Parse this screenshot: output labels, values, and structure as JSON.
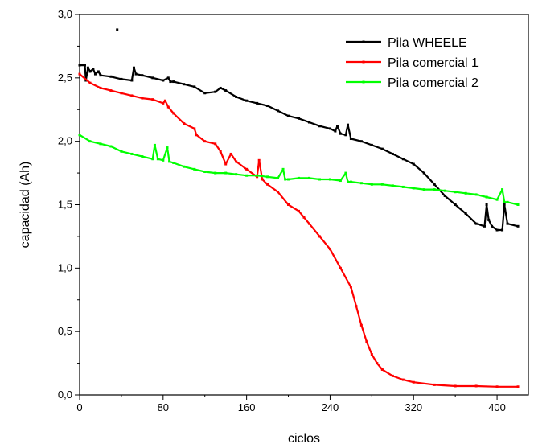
{
  "chart_data": {
    "type": "line",
    "title": "",
    "xlabel": "ciclos",
    "ylabel": "capacidad (Ah)",
    "xlim": [
      0,
      430
    ],
    "ylim": [
      0,
      3
    ],
    "x_ticks": [
      0,
      80,
      160,
      240,
      320,
      400
    ],
    "x_tick_labels": [
      "0",
      "80",
      "160",
      "240",
      "320",
      "400"
    ],
    "y_ticks": [
      0,
      0.5,
      1,
      1.5,
      2,
      2.5,
      3
    ],
    "y_tick_labels": [
      "0,0",
      "0,5",
      "1,0",
      "1,5",
      "2,0",
      "2,5",
      "3,0"
    ],
    "grid": false,
    "legend_position": "top-right",
    "series": [
      {
        "name": "Pila WHEELE",
        "color": "#000000",
        "x": [
          0,
          5,
          6,
          8,
          10,
          13,
          15,
          18,
          20,
          30,
          40,
          50,
          52,
          54,
          60,
          70,
          80,
          85,
          87,
          90,
          100,
          110,
          120,
          130,
          135,
          140,
          150,
          160,
          170,
          180,
          190,
          200,
          210,
          220,
          230,
          240,
          245,
          247,
          250,
          255,
          257,
          260,
          270,
          280,
          290,
          300,
          310,
          320,
          330,
          340,
          350,
          360,
          370,
          380,
          388,
          390,
          392,
          395,
          400,
          405,
          407,
          410,
          420
        ],
        "values": [
          2.6,
          2.6,
          2.48,
          2.58,
          2.55,
          2.57,
          2.53,
          2.55,
          2.52,
          2.51,
          2.49,
          2.48,
          2.58,
          2.53,
          2.52,
          2.5,
          2.48,
          2.5,
          2.47,
          2.47,
          2.45,
          2.43,
          2.38,
          2.39,
          2.42,
          2.4,
          2.35,
          2.32,
          2.3,
          2.28,
          2.24,
          2.2,
          2.18,
          2.15,
          2.12,
          2.1,
          2.08,
          2.12,
          2.06,
          2.05,
          2.13,
          2.02,
          2.0,
          1.97,
          1.94,
          1.9,
          1.86,
          1.82,
          1.75,
          1.66,
          1.57,
          1.5,
          1.43,
          1.35,
          1.33,
          1.5,
          1.38,
          1.33,
          1.3,
          1.3,
          1.5,
          1.35,
          1.33
        ]
      },
      {
        "name": "Pila comercial 1",
        "color": "#ff0000",
        "x": [
          0,
          10,
          20,
          30,
          40,
          50,
          60,
          70,
          80,
          82,
          85,
          90,
          100,
          110,
          112,
          120,
          130,
          135,
          140,
          145,
          150,
          160,
          170,
          172,
          175,
          180,
          190,
          200,
          210,
          215,
          220,
          230,
          240,
          250,
          260,
          265,
          270,
          275,
          280,
          285,
          290,
          300,
          310,
          320,
          340,
          360,
          380,
          400,
          420
        ],
        "values": [
          2.53,
          2.46,
          2.42,
          2.4,
          2.38,
          2.36,
          2.34,
          2.33,
          2.3,
          2.32,
          2.27,
          2.22,
          2.14,
          2.1,
          2.05,
          2.0,
          1.98,
          1.92,
          1.82,
          1.9,
          1.84,
          1.78,
          1.72,
          1.85,
          1.7,
          1.66,
          1.6,
          1.5,
          1.45,
          1.4,
          1.35,
          1.25,
          1.15,
          1.0,
          0.85,
          0.7,
          0.55,
          0.42,
          0.32,
          0.25,
          0.2,
          0.15,
          0.12,
          0.1,
          0.08,
          0.07,
          0.07,
          0.065,
          0.065
        ]
      },
      {
        "name": "Pila comercial 2",
        "color": "#00ff00",
        "x": [
          0,
          10,
          20,
          30,
          40,
          50,
          60,
          70,
          72,
          75,
          80,
          84,
          86,
          90,
          100,
          110,
          120,
          130,
          140,
          150,
          160,
          170,
          180,
          190,
          195,
          197,
          200,
          210,
          220,
          230,
          240,
          250,
          255,
          257,
          260,
          270,
          280,
          290,
          300,
          310,
          320,
          330,
          340,
          350,
          360,
          370,
          380,
          390,
          400,
          405,
          407,
          410,
          420
        ],
        "values": [
          2.05,
          2.0,
          1.98,
          1.96,
          1.92,
          1.9,
          1.88,
          1.86,
          1.97,
          1.86,
          1.85,
          1.95,
          1.84,
          1.83,
          1.8,
          1.78,
          1.76,
          1.75,
          1.75,
          1.74,
          1.73,
          1.73,
          1.72,
          1.71,
          1.78,
          1.7,
          1.7,
          1.71,
          1.71,
          1.7,
          1.7,
          1.69,
          1.75,
          1.68,
          1.68,
          1.67,
          1.66,
          1.66,
          1.65,
          1.64,
          1.63,
          1.62,
          1.62,
          1.61,
          1.6,
          1.59,
          1.58,
          1.56,
          1.54,
          1.62,
          1.52,
          1.52,
          1.5
        ]
      }
    ],
    "annotations": [
      {
        "type": "stray-point",
        "x": 36,
        "y": 2.88,
        "color": "#000000"
      }
    ]
  }
}
